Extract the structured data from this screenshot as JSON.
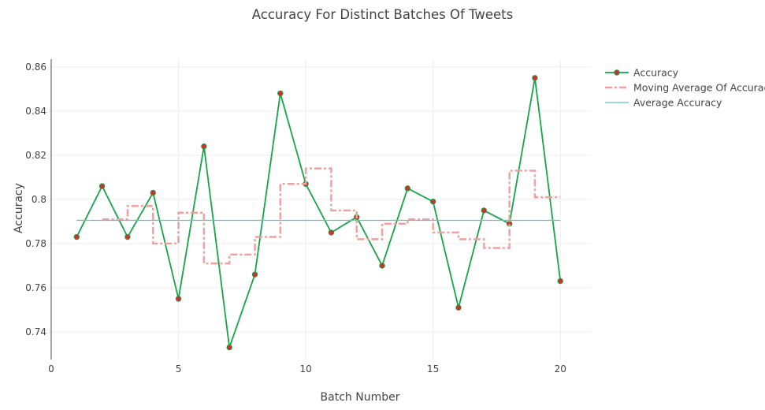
{
  "chart_data": {
    "type": "line",
    "title": "Accuracy For Distinct Batches Of Tweets",
    "xlabel": "Batch Number",
    "ylabel": "Accuracy",
    "xlim": [
      0,
      21.2
    ],
    "ylim": [
      0.7275,
      0.8635
    ],
    "xticks": [
      0,
      5,
      10,
      15,
      20
    ],
    "xtick_labels": [
      "0",
      "5",
      "10",
      "15",
      "20"
    ],
    "yticks": [
      0.74,
      0.76,
      0.78,
      0.8,
      0.82,
      0.84,
      0.86
    ],
    "ytick_labels": [
      "0.74",
      "0.76",
      "0.78",
      "0.8",
      "0.82",
      "0.84",
      "0.86"
    ],
    "grid": true,
    "legend_position": "top-right",
    "series": [
      {
        "name": "Accuracy",
        "color": "#16a34a",
        "marker_color": "#c0392b",
        "style": "line+markers",
        "x": [
          1,
          2,
          3,
          4,
          5,
          6,
          7,
          8,
          9,
          10,
          11,
          12,
          13,
          14,
          15,
          16,
          17,
          18,
          19,
          20
        ],
        "y": [
          0.783,
          0.806,
          0.783,
          0.803,
          0.755,
          0.824,
          0.733,
          0.766,
          0.848,
          0.807,
          0.785,
          0.792,
          0.77,
          0.805,
          0.799,
          0.751,
          0.795,
          0.789,
          0.855,
          0.763
        ]
      },
      {
        "name": "Moving Average Of Accuracy",
        "color": "#f0a0a0",
        "style": "dash-dot-step",
        "x": [
          2,
          3,
          4,
          5,
          6,
          7,
          8,
          9,
          10,
          11,
          12,
          13,
          14,
          15,
          16,
          17,
          18,
          19
        ],
        "y": [
          0.791,
          0.797,
          0.78,
          0.794,
          0.771,
          0.775,
          0.783,
          0.807,
          0.814,
          0.795,
          0.782,
          0.789,
          0.791,
          0.785,
          0.782,
          0.778,
          0.813,
          0.801
        ]
      },
      {
        "name": "Average Accuracy",
        "color": "#67c1cc",
        "style": "line",
        "x": [
          1,
          20
        ],
        "y": [
          0.7905,
          0.7905
        ]
      }
    ]
  }
}
